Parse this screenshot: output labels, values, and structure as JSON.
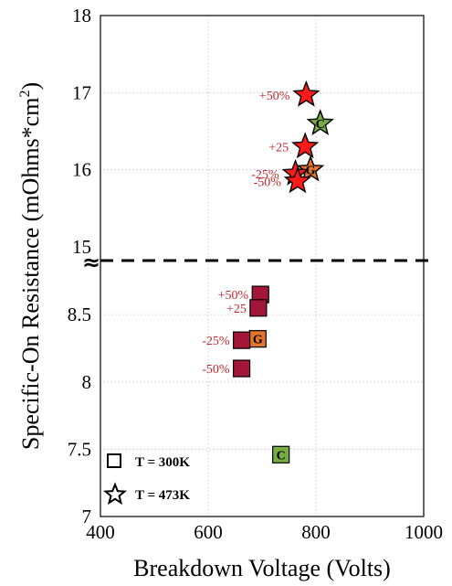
{
  "chart_data": {
    "type": "scatter",
    "xlabel": "Breakdown Voltage (Volts)",
    "ylabel": "Specific-On Resistance (mOhms*cm",
    "ylabel_superscript": "2",
    "ylabel_close": ")",
    "x_range": [
      400,
      1000
    ],
    "x_ticks": [
      400,
      600,
      800,
      1000
    ],
    "x_tick_labels": [
      "400",
      "600",
      "800",
      "1000"
    ],
    "upper_y_range": [
      15,
      18
    ],
    "upper_y_ticks": [
      15,
      16,
      17,
      18
    ],
    "upper_y_tick_labels": [
      "15",
      "16",
      "17",
      "18"
    ],
    "lower_y_range": [
      7,
      8.8
    ],
    "lower_y_ticks": [
      7,
      7.5,
      8,
      8.5
    ],
    "lower_y_tick_labels": [
      "7",
      "7.5",
      "8",
      "8.5"
    ],
    "broken_axis_symbol": "≈",
    "grid": true,
    "legend_position": "bottom-left",
    "legend": [
      {
        "marker": "square",
        "label": "T = 300K"
      },
      {
        "marker": "star",
        "label": "T = 473K"
      }
    ],
    "colors": {
      "red": "#ff1a1a",
      "green": "#77ab43",
      "orange": "#e2742e",
      "maroon": "#a3163a",
      "annotation": "#c1272d"
    },
    "points_473K": [
      {
        "x": 782,
        "y": 16.97,
        "color": "red",
        "letter": "",
        "annotation": "+50%"
      },
      {
        "x": 808,
        "y": 16.6,
        "color": "green",
        "letter": "C",
        "annotation": ""
      },
      {
        "x": 780,
        "y": 16.3,
        "color": "red",
        "letter": "",
        "annotation": "+25"
      },
      {
        "x": 790,
        "y": 16.0,
        "color": "orange",
        "letter": "G",
        "annotation": ""
      },
      {
        "x": 762,
        "y": 15.95,
        "color": "red",
        "letter": "",
        "annotation": "-25%"
      },
      {
        "x": 766,
        "y": 15.85,
        "color": "red",
        "letter": "",
        "annotation": "-50%"
      }
    ],
    "points_300K": [
      {
        "x": 697,
        "y": 8.65,
        "color": "maroon",
        "letter": "",
        "annotation": "+50%"
      },
      {
        "x": 693,
        "y": 8.55,
        "color": "maroon",
        "letter": "",
        "annotation": "+25"
      },
      {
        "x": 692,
        "y": 8.32,
        "color": "orange",
        "letter": "G",
        "annotation": ""
      },
      {
        "x": 662,
        "y": 8.31,
        "color": "maroon",
        "letter": "",
        "annotation": "-25%"
      },
      {
        "x": 662,
        "y": 8.1,
        "color": "maroon",
        "letter": "",
        "annotation": "-50%"
      },
      {
        "x": 735,
        "y": 7.46,
        "color": "green",
        "letter": "C",
        "annotation": ""
      }
    ]
  }
}
